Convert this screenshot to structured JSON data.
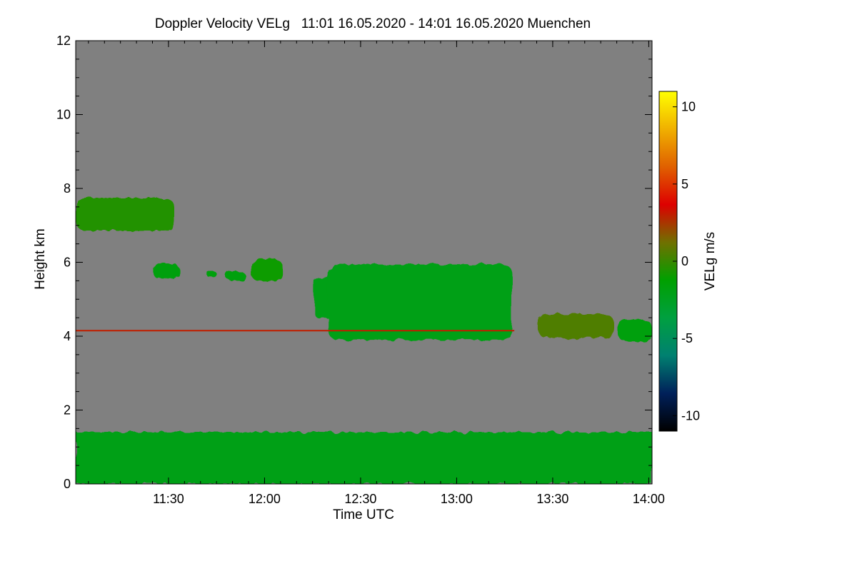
{
  "chart_data": {
    "type": "heatmap",
    "title": "Doppler Velocity VELg   11:01 16.05.2020 - 14:01 16.05.2020 Muenchen",
    "xlabel": "Time UTC",
    "ylabel": "Height km",
    "xlim": [
      11.017,
      14.017
    ],
    "ylim": [
      0,
      12
    ],
    "x_ticks": [
      {
        "value": 11.5,
        "label": "11:30"
      },
      {
        "value": 12.0,
        "label": "12:00"
      },
      {
        "value": 12.5,
        "label": "12:30"
      },
      {
        "value": 13.0,
        "label": "13:00"
      },
      {
        "value": 13.5,
        "label": "13:30"
      },
      {
        "value": 14.0,
        "label": "14:00"
      }
    ],
    "y_ticks": [
      {
        "value": 0,
        "label": "0"
      },
      {
        "value": 2,
        "label": "2"
      },
      {
        "value": 4,
        "label": "4"
      },
      {
        "value": 6,
        "label": "6"
      },
      {
        "value": 8,
        "label": "8"
      },
      {
        "value": 10,
        "label": "10"
      },
      {
        "value": 12,
        "label": "12"
      }
    ],
    "colorbar": {
      "label": "VELg m/s",
      "range": [
        -11,
        11
      ],
      "ticks": [
        {
          "value": 10,
          "label": "10"
        },
        {
          "value": 5,
          "label": "5"
        },
        {
          "value": 0,
          "label": "0"
        },
        {
          "value": -5,
          "label": "-5"
        },
        {
          "value": -10,
          "label": "-10"
        }
      ]
    },
    "colors": {
      "background": "#808080",
      "colormap": [
        "#000000",
        "#00205a",
        "#008070",
        "#00a040",
        "#00a000",
        "#707000",
        "#dd0000",
        "#e06000",
        "#f0b000",
        "#ffff00"
      ]
    },
    "features": [
      {
        "name": "cirrus-cloud",
        "t_start": 11.017,
        "t_end": 11.53,
        "h_bottom": 6.85,
        "h_top": 7.75,
        "velocity": -0.5
      },
      {
        "name": "mid-cloud-1",
        "t_start": 11.42,
        "t_end": 11.56,
        "h_bottom": 5.55,
        "h_top": 5.95,
        "velocity": -1.5
      },
      {
        "name": "mid-cloud-2",
        "t_start": 11.7,
        "t_end": 11.75,
        "h_bottom": 5.6,
        "h_top": 5.75,
        "velocity": -1.5
      },
      {
        "name": "mid-cloud-3",
        "t_start": 11.8,
        "t_end": 11.9,
        "h_bottom": 5.5,
        "h_top": 5.75,
        "velocity": -1.5
      },
      {
        "name": "mid-cloud-4",
        "t_start": 11.93,
        "t_end": 12.09,
        "h_bottom": 5.5,
        "h_top": 6.1,
        "velocity": -1.0
      },
      {
        "name": "falling-streak",
        "t_start": 12.26,
        "t_end": 12.35,
        "h_bottom": 4.5,
        "h_top": 5.6,
        "velocity": -2.0
      },
      {
        "name": "main-cloud",
        "t_start": 12.33,
        "t_end": 13.29,
        "h_bottom": 3.9,
        "h_top": 5.95,
        "velocity": -2.0
      },
      {
        "name": "low-cloud-1",
        "t_start": 13.42,
        "t_end": 13.82,
        "h_bottom": 3.95,
        "h_top": 4.6,
        "velocity": 0.5
      },
      {
        "name": "low-cloud-2",
        "t_start": 13.84,
        "t_end": 14.017,
        "h_bottom": 3.85,
        "h_top": 4.45,
        "velocity": -1.5
      },
      {
        "name": "boundary-layer",
        "t_start": 11.017,
        "t_end": 14.017,
        "h_bottom": 0.0,
        "h_top": 1.4,
        "velocity": -2.0
      },
      {
        "name": "interference-line",
        "t_start": 11.017,
        "t_end": 13.3,
        "h_bottom": 4.13,
        "h_top": 4.17,
        "velocity": 3.0
      }
    ]
  }
}
